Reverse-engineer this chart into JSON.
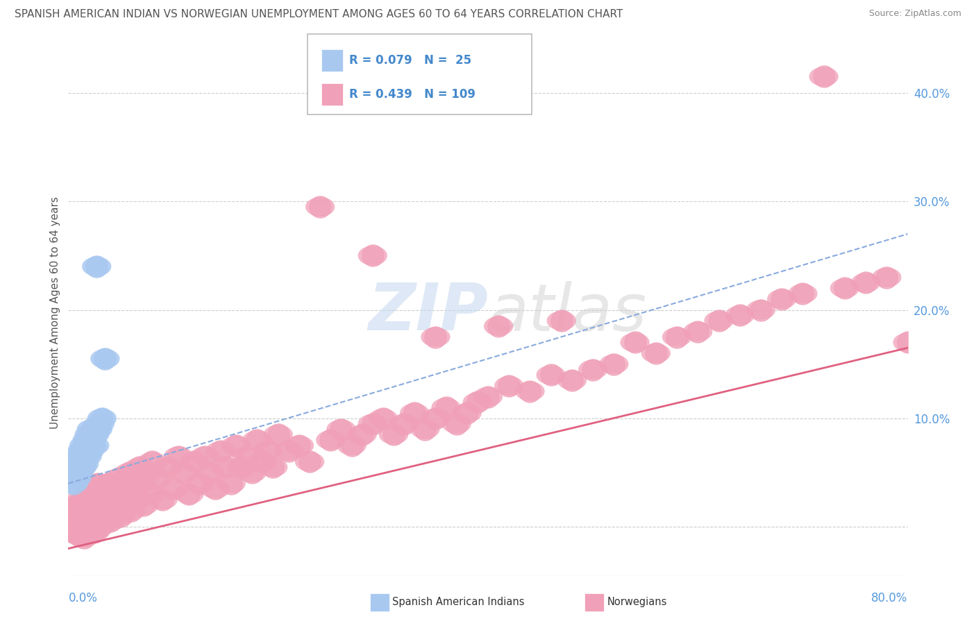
{
  "title": "SPANISH AMERICAN INDIAN VS NORWEGIAN UNEMPLOYMENT AMONG AGES 60 TO 64 YEARS CORRELATION CHART",
  "source": "Source: ZipAtlas.com",
  "ylabel": "Unemployment Among Ages 60 to 64 years",
  "blue_color": "#a8c8f0",
  "pink_color": "#f0a0b8",
  "blue_trend_color": "#88aadd",
  "pink_trend_color": "#e06080",
  "title_color": "#555555",
  "source_color": "#888888",
  "legend_text_color": "#4488cc",
  "background_color": "#ffffff",
  "grid_color": "#cccccc",
  "xlim": [
    0.0,
    0.8
  ],
  "ylim": [
    -0.045,
    0.44
  ],
  "ytick_vals": [
    0.0,
    0.1,
    0.2,
    0.3,
    0.4
  ],
  "ytick_labels": [
    "",
    "10.0%",
    "20.0%",
    "30.0%",
    "40.0%"
  ],
  "blue_x": [
    0.005,
    0.005,
    0.007,
    0.008,
    0.01,
    0.01,
    0.012,
    0.013,
    0.013,
    0.015,
    0.015,
    0.017,
    0.018,
    0.018,
    0.02,
    0.02,
    0.022,
    0.022,
    0.025,
    0.025,
    0.027,
    0.028,
    0.03,
    0.032,
    0.035
  ],
  "blue_y": [
    0.06,
    0.04,
    0.055,
    0.045,
    0.065,
    0.05,
    0.06,
    0.07,
    0.055,
    0.075,
    0.058,
    0.07,
    0.08,
    0.065,
    0.085,
    0.07,
    0.08,
    0.09,
    0.085,
    0.075,
    0.24,
    0.09,
    0.095,
    0.1,
    0.155
  ],
  "blue_trend_x0": 0.0,
  "blue_trend_y0": 0.04,
  "blue_trend_x1": 0.8,
  "blue_trend_y1": 0.27,
  "pink_trend_x0": 0.0,
  "pink_trend_y0": -0.02,
  "pink_trend_x1": 0.8,
  "pink_trend_y1": 0.165,
  "pink_x": [
    0.005,
    0.005,
    0.008,
    0.01,
    0.01,
    0.012,
    0.013,
    0.015,
    0.015,
    0.018,
    0.02,
    0.02,
    0.022,
    0.025,
    0.025,
    0.028,
    0.03,
    0.03,
    0.033,
    0.035,
    0.038,
    0.04,
    0.04,
    0.043,
    0.045,
    0.048,
    0.05,
    0.05,
    0.053,
    0.055,
    0.058,
    0.06,
    0.06,
    0.063,
    0.065,
    0.068,
    0.07,
    0.072,
    0.075,
    0.078,
    0.08,
    0.085,
    0.09,
    0.095,
    0.1,
    0.105,
    0.11,
    0.115,
    0.12,
    0.125,
    0.13,
    0.135,
    0.14,
    0.145,
    0.15,
    0.155,
    0.16,
    0.165,
    0.17,
    0.175,
    0.18,
    0.185,
    0.19,
    0.195,
    0.2,
    0.21,
    0.22,
    0.23,
    0.24,
    0.25,
    0.26,
    0.27,
    0.28,
    0.29,
    0.3,
    0.31,
    0.32,
    0.33,
    0.34,
    0.35,
    0.36,
    0.37,
    0.38,
    0.39,
    0.4,
    0.42,
    0.44,
    0.46,
    0.48,
    0.5,
    0.52,
    0.54,
    0.56,
    0.58,
    0.6,
    0.62,
    0.64,
    0.66,
    0.68,
    0.7,
    0.72,
    0.74,
    0.76,
    0.78,
    0.8,
    0.35,
    0.29,
    0.41,
    0.47
  ],
  "pink_y": [
    0.01,
    -0.005,
    0.02,
    0.015,
    -0.008,
    0.025,
    0.005,
    0.018,
    -0.01,
    0.03,
    0.025,
    0.005,
    0.035,
    0.015,
    -0.005,
    0.04,
    0.02,
    0.0,
    0.03,
    0.01,
    0.04,
    0.025,
    0.005,
    0.035,
    0.015,
    0.045,
    0.03,
    0.01,
    0.04,
    0.02,
    0.05,
    0.035,
    0.015,
    0.045,
    0.025,
    0.055,
    0.04,
    0.02,
    0.05,
    0.03,
    0.06,
    0.045,
    0.025,
    0.055,
    0.035,
    0.065,
    0.05,
    0.03,
    0.06,
    0.04,
    0.065,
    0.05,
    0.035,
    0.07,
    0.055,
    0.04,
    0.075,
    0.055,
    0.065,
    0.05,
    0.08,
    0.06,
    0.07,
    0.055,
    0.085,
    0.07,
    0.075,
    0.06,
    0.295,
    0.08,
    0.09,
    0.075,
    0.085,
    0.095,
    0.1,
    0.085,
    0.095,
    0.105,
    0.09,
    0.1,
    0.11,
    0.095,
    0.105,
    0.115,
    0.12,
    0.13,
    0.125,
    0.14,
    0.135,
    0.145,
    0.15,
    0.17,
    0.16,
    0.175,
    0.18,
    0.19,
    0.195,
    0.2,
    0.21,
    0.215,
    0.415,
    0.22,
    0.225,
    0.23,
    0.17,
    0.175,
    0.25,
    0.185,
    0.19
  ]
}
